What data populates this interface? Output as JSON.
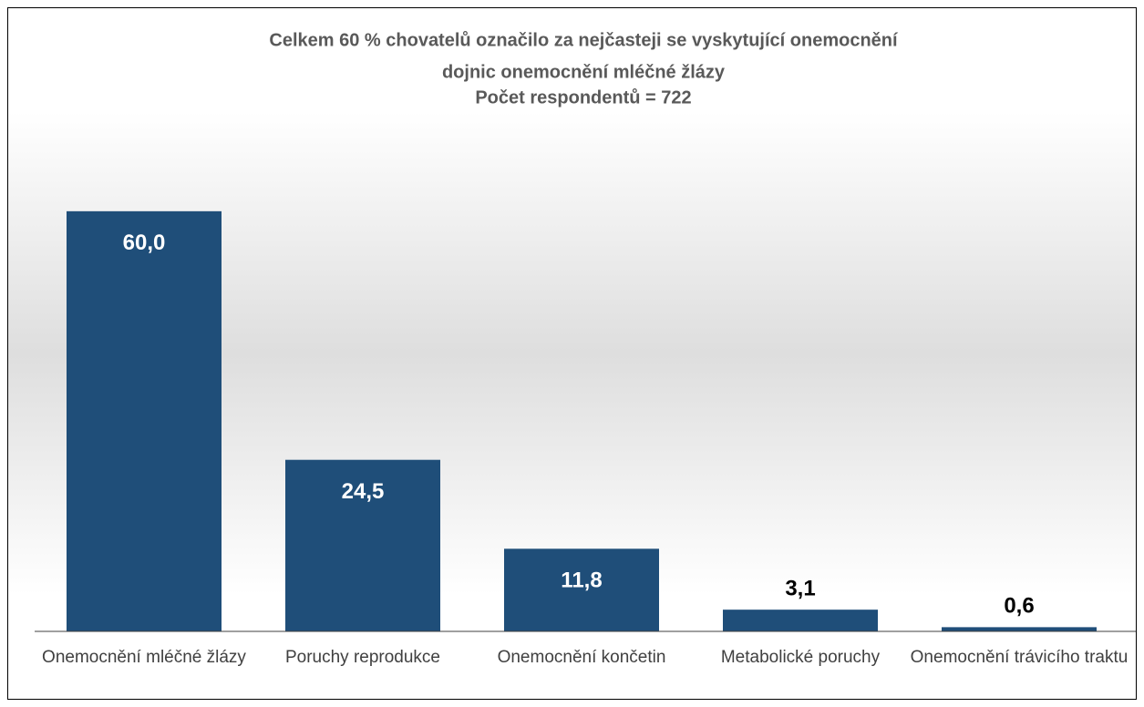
{
  "chart_data": {
    "type": "bar",
    "title": [
      "Celkem 60 % chovatelů označilo za nejčasteji se vyskytující onemocnění",
      "dojnic onemocnění mléčné žlázy",
      "Počet respondentů = 722"
    ],
    "categories": [
      "Onemocnění mléčné žlázy",
      "Poruchy reprodukce",
      "Onemocnění končetin",
      "Metabolické poruchy",
      "Onemocnění trávicího traktu"
    ],
    "values": [
      60.0,
      24.5,
      11.8,
      3.1,
      0.6
    ],
    "value_labels": [
      "60,0",
      "24,5",
      "11,8",
      "3,1",
      "0,6"
    ],
    "color": "#1f4e79",
    "ylim": [
      0,
      70
    ]
  }
}
